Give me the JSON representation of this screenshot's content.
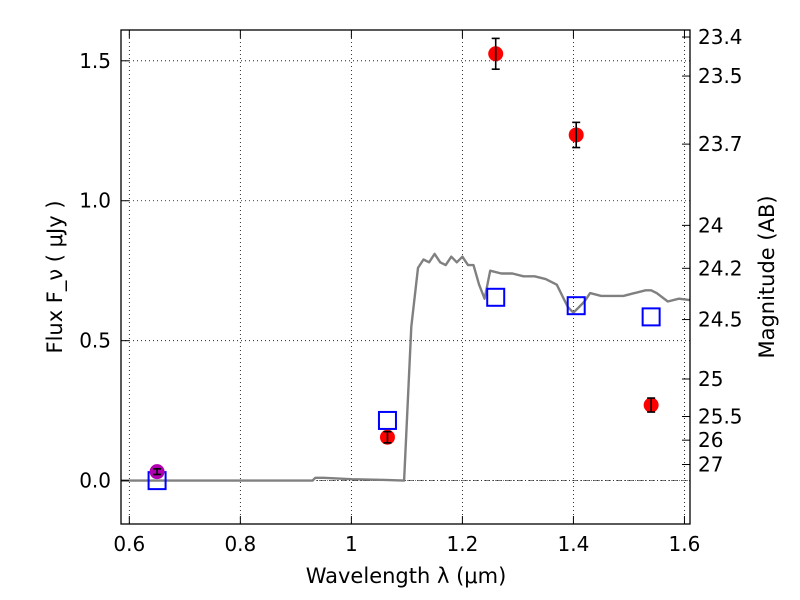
{
  "chart_data": {
    "type": "scatter",
    "xlabel": "Wavelength  λ (μm)",
    "ylabel": "Flux  F_ν  ( μJy )",
    "ylabel_right": "Magnitude (AB)",
    "xlim": [
      0.585,
      1.61
    ],
    "ylim": [
      -0.155,
      1.61
    ],
    "grid": true,
    "x_ticks": [
      {
        "value": 0.6,
        "label": "0.6"
      },
      {
        "value": 0.8,
        "label": "0.8"
      },
      {
        "value": 1.0,
        "label": "1"
      },
      {
        "value": 1.2,
        "label": "1.2"
      },
      {
        "value": 1.4,
        "label": "1.4"
      },
      {
        "value": 1.6,
        "label": "1.6"
      }
    ],
    "y_ticks": [
      {
        "value": 0.0,
        "label": "0.0"
      },
      {
        "value": 0.5,
        "label": "0.5"
      },
      {
        "value": 1.0,
        "label": "1.0"
      },
      {
        "value": 1.5,
        "label": "1.5"
      }
    ],
    "magnitude_ticks": [
      {
        "mag": 23.4,
        "label": "23.4"
      },
      {
        "mag": 23.5,
        "label": "23.5"
      },
      {
        "mag": 23.7,
        "label": "23.7"
      },
      {
        "mag": 24,
        "label": "24"
      },
      {
        "mag": 24.2,
        "label": "24.2"
      },
      {
        "mag": 24.5,
        "label": "24.5"
      },
      {
        "mag": 25,
        "label": "25"
      },
      {
        "mag": 25.5,
        "label": "25.5"
      },
      {
        "mag": 26,
        "label": "26"
      },
      {
        "mag": 27,
        "label": "27"
      }
    ],
    "model_sed": {
      "color": "#808080",
      "points": [
        [
          0.585,
          0.0
        ],
        [
          0.93,
          0.0
        ],
        [
          0.935,
          0.01
        ],
        [
          0.95,
          0.01
        ],
        [
          1.0,
          0.005
        ],
        [
          1.05,
          0.003
        ],
        [
          1.095,
          0.0
        ],
        [
          1.108,
          0.55
        ],
        [
          1.12,
          0.76
        ],
        [
          1.13,
          0.79
        ],
        [
          1.14,
          0.78
        ],
        [
          1.15,
          0.81
        ],
        [
          1.16,
          0.78
        ],
        [
          1.17,
          0.77
        ],
        [
          1.18,
          0.8
        ],
        [
          1.19,
          0.78
        ],
        [
          1.2,
          0.8
        ],
        [
          1.21,
          0.77
        ],
        [
          1.22,
          0.77
        ],
        [
          1.23,
          0.7
        ],
        [
          1.24,
          0.65
        ],
        [
          1.25,
          0.75
        ],
        [
          1.27,
          0.74
        ],
        [
          1.29,
          0.74
        ],
        [
          1.31,
          0.73
        ],
        [
          1.33,
          0.73
        ],
        [
          1.35,
          0.72
        ],
        [
          1.37,
          0.7
        ],
        [
          1.38,
          0.66
        ],
        [
          1.39,
          0.62
        ],
        [
          1.4,
          0.6
        ],
        [
          1.41,
          0.62
        ],
        [
          1.42,
          0.64
        ],
        [
          1.43,
          0.67
        ],
        [
          1.45,
          0.66
        ],
        [
          1.47,
          0.66
        ],
        [
          1.49,
          0.66
        ],
        [
          1.51,
          0.67
        ],
        [
          1.53,
          0.68
        ],
        [
          1.54,
          0.68
        ],
        [
          1.55,
          0.67
        ],
        [
          1.57,
          0.64
        ],
        [
          1.59,
          0.65
        ],
        [
          1.61,
          0.645
        ]
      ]
    },
    "model_photometry": {
      "color": "#0000ff",
      "points": [
        {
          "x": 0.65,
          "y": 0.0
        },
        {
          "x": 1.065,
          "y": 0.215
        },
        {
          "x": 1.26,
          "y": 0.655
        },
        {
          "x": 1.405,
          "y": 0.625
        },
        {
          "x": 1.54,
          "y": 0.585
        }
      ]
    },
    "observed": {
      "color": "#ff0000",
      "points": [
        {
          "x": 1.065,
          "y": 0.155,
          "err": 0.02
        },
        {
          "x": 1.26,
          "y": 1.525,
          "err": 0.055
        },
        {
          "x": 1.405,
          "y": 1.235,
          "err": 0.045
        },
        {
          "x": 1.54,
          "y": 0.27,
          "err": 0.025
        }
      ]
    },
    "observed_optical": {
      "color": "#b000b0",
      "points": [
        {
          "x": 0.65,
          "y": 0.032,
          "err": 0.01
        }
      ]
    }
  }
}
